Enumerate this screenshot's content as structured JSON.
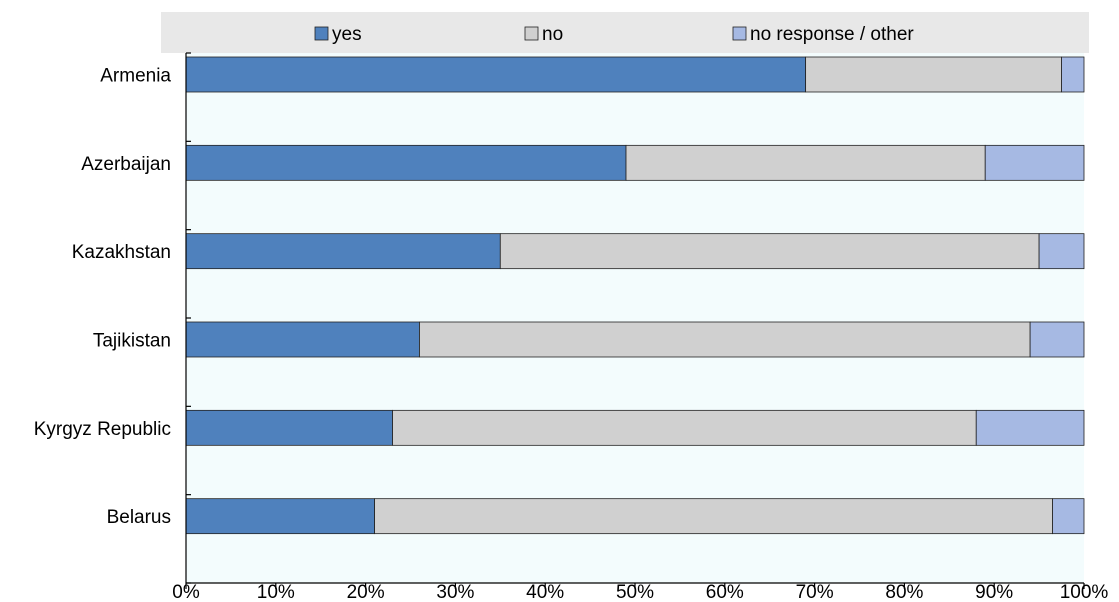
{
  "chart_data": {
    "type": "bar",
    "orientation": "horizontal",
    "stacked": true,
    "categories": [
      "Armenia",
      "Azerbaijan",
      "Kazakhstan",
      "Tajikistan",
      "Kyrgyz Republic",
      "Belarus"
    ],
    "series": [
      {
        "name": "yes",
        "values": [
          69,
          49,
          35,
          26,
          23,
          21
        ],
        "color": "#4f81bd"
      },
      {
        "name": "no",
        "values": [
          28.5,
          40,
          60,
          68,
          65,
          75.5
        ],
        "color": "#d0d0d0"
      },
      {
        "name": "no response / other",
        "values": [
          2.5,
          11,
          5,
          6,
          12,
          3.5
        ],
        "color": "#a6b9e3"
      }
    ],
    "xlim": [
      0,
      100
    ],
    "xticks": [
      "0%",
      "10%",
      "20%",
      "30%",
      "40%",
      "50%",
      "60%",
      "70%",
      "80%",
      "90%",
      "100%"
    ],
    "legend_position": "top",
    "plot_background": "#f3fcfd",
    "legend_background": "#e8e8e8",
    "grid": false
  }
}
